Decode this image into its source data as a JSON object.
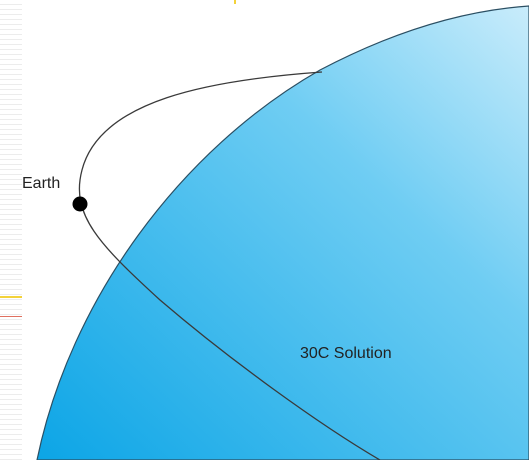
{
  "diagram": {
    "earth_label": "Earth",
    "region_label": "30C Solution",
    "colors": {
      "region_light": "#c9ecfb",
      "region_dark": "#0ca5e6",
      "region_edge": "#2b4f63",
      "orbit_line": "#3a3a3a",
      "earth_dot": "#000000",
      "background": "#ffffff"
    }
  }
}
